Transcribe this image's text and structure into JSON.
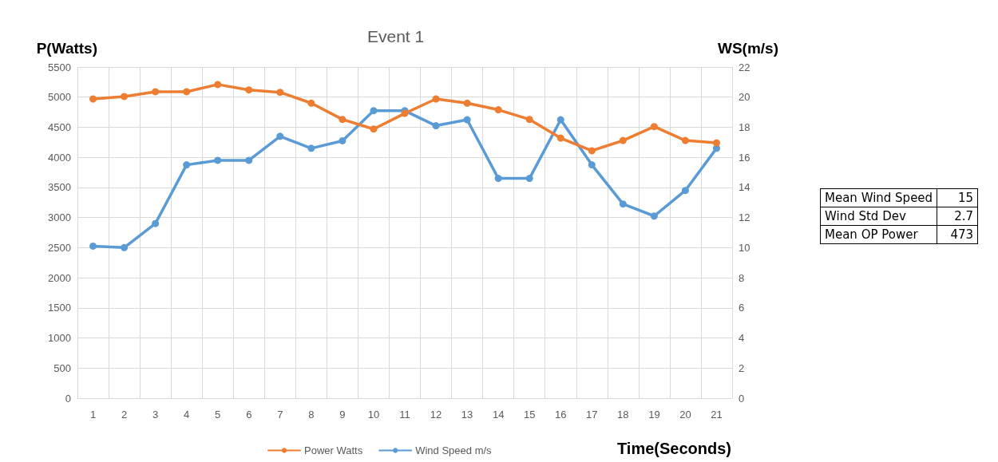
{
  "chart_data": {
    "type": "line",
    "title": "Event 1",
    "xlabel": "Time(Seconds)",
    "ylabel": "P(Watts)",
    "y2label": "WS(m/s)",
    "categories": [
      "1",
      "2",
      "3",
      "4",
      "5",
      "6",
      "7",
      "8",
      "9",
      "10",
      "11",
      "12",
      "13",
      "14",
      "15",
      "16",
      "17",
      "18",
      "19",
      "20",
      "21"
    ],
    "series": [
      {
        "name": "Power Watts",
        "color": "#ed7d31",
        "values": [
          4970,
          5010,
          5090,
          5090,
          5210,
          5120,
          5080,
          4900,
          4630,
          4470,
          4730,
          4970,
          4900,
          4790,
          4630,
          4320,
          4110,
          4280,
          4510,
          4280,
          4240
        ]
      },
      {
        "name": "Wind Speed m/s",
        "color": "#5b9bd5",
        "axis": "y2",
        "values": [
          10.1,
          10.0,
          11.6,
          15.5,
          15.8,
          15.8,
          17.4,
          16.6,
          17.1,
          19.1,
          19.1,
          18.1,
          18.5,
          14.6,
          14.6,
          18.5,
          15.5,
          12.9,
          12.1,
          13.8,
          16.6
        ]
      }
    ],
    "ylim": [
      0,
      5500
    ],
    "yticks": [
      0,
      500,
      1000,
      1500,
      2000,
      2500,
      3000,
      3500,
      4000,
      4500,
      5000,
      5500
    ],
    "y2lim": [
      0,
      22
    ],
    "y2ticks": [
      0,
      2,
      4,
      6,
      8,
      10,
      12,
      14,
      16,
      18,
      20,
      22
    ],
    "grid": true,
    "legend": "bottom",
    "marker": "circle",
    "line_style": "solid",
    "annotations": [
      "Mean Wind Speed",
      "15",
      "Wind Std Dev",
      "2.7",
      "Mean OP Power",
      "473"
    ]
  }
}
